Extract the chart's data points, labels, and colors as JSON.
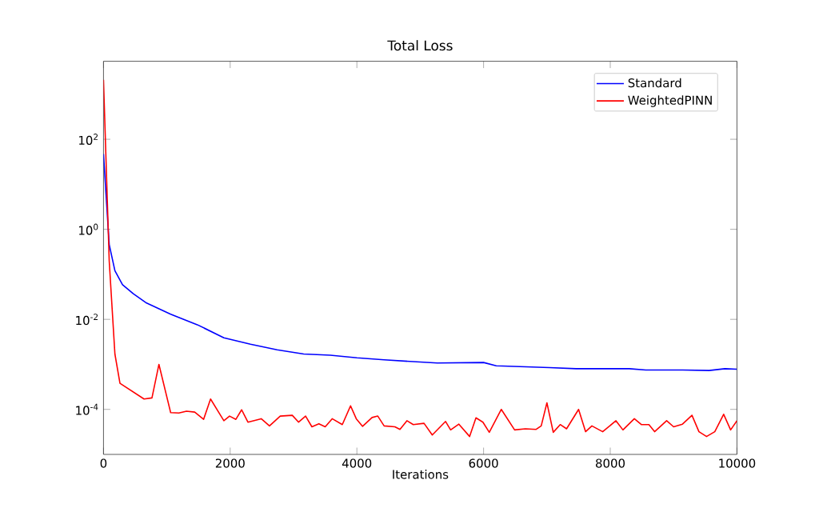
{
  "chart_data": {
    "type": "line",
    "title": "Total Loss",
    "xlabel": "Iterations",
    "xlim": [
      0,
      10000
    ],
    "ylim": [
      1e-05,
      5400
    ],
    "log": "y",
    "legend": "top right",
    "grid": false,
    "xticks": [
      0,
      2000,
      4000,
      6000,
      8000,
      10000
    ],
    "yticks": [
      {
        "value": 0.0001,
        "label": "10$^{-4}$"
      },
      {
        "value": 0.01,
        "label": "10$^{-2}$"
      },
      {
        "value": 1,
        "label": "10$^{0}$"
      },
      {
        "value": 100,
        "label": "10$^{2}$"
      }
    ],
    "series": [
      {
        "name": "Standard",
        "color": "#0000ff",
        "x": [
          0,
          90,
          180,
          300,
          470,
          680,
          1060,
          1480,
          1900,
          2320,
          2740,
          3160,
          3580,
          4000,
          4430,
          5270,
          6000,
          6200,
          7040,
          7460,
          8300,
          8560,
          9140,
          9560,
          9810,
          10000
        ],
        "values": [
          47,
          0.46,
          0.12,
          0.059,
          0.037,
          0.023,
          0.013,
          0.0076,
          0.0039,
          0.0028,
          0.0021,
          0.0017,
          0.0016,
          0.0014,
          0.00126,
          0.00107,
          0.0011,
          0.00093,
          0.00085,
          0.0008,
          0.0008,
          0.00075,
          0.00075,
          0.00073,
          0.0008,
          0.00078
        ]
      },
      {
        "name": "WeightedPINN",
        "color": "#ff0000",
        "x": [
          0,
          90,
          180,
          260,
          640,
          765,
          875,
          1060,
          1190,
          1310,
          1440,
          1580,
          1690,
          1900,
          1990,
          2090,
          2180,
          2280,
          2490,
          2620,
          2790,
          2980,
          3080,
          3190,
          3290,
          3400,
          3500,
          3610,
          3770,
          3900,
          3990,
          4090,
          4240,
          4330,
          4430,
          4600,
          4680,
          4790,
          4890,
          5060,
          5190,
          5400,
          5480,
          5610,
          5780,
          5880,
          5990,
          6090,
          6280,
          6490,
          6660,
          6830,
          6910,
          7000,
          7100,
          7210,
          7310,
          7500,
          7610,
          7710,
          7880,
          8090,
          8200,
          8380,
          8490,
          8610,
          8700,
          8890,
          9000,
          9140,
          9290,
          9400,
          9520,
          9650,
          9790,
          9900,
          10000
        ],
        "values": [
          2100,
          0.2,
          0.0017,
          0.00038,
          0.00017,
          0.00018,
          0.001,
          8.5e-05,
          8.3e-05,
          9.1e-05,
          8.7e-05,
          6e-05,
          0.00017,
          5.6e-05,
          7.1e-05,
          6e-05,
          9.8e-05,
          5.2e-05,
          6.2e-05,
          4.3e-05,
          7.1e-05,
          7.4e-05,
          5.2e-05,
          7.1e-05,
          4.1e-05,
          4.8e-05,
          4.1e-05,
          6.2e-05,
          4.6e-05,
          0.00012,
          6.2e-05,
          4.2e-05,
          6.6e-05,
          7.1e-05,
          4.3e-05,
          4.1e-05,
          3.6e-05,
          5.6e-05,
          4.6e-05,
          4.9e-05,
          2.7e-05,
          5.4e-05,
          3.5e-05,
          4.7e-05,
          2.5e-05,
          6.5e-05,
          5.2e-05,
          3.1e-05,
          0.0001,
          3.5e-05,
          3.7e-05,
          3.6e-05,
          4.3e-05,
          0.00014,
          3.1e-05,
          4.6e-05,
          3.7e-05,
          0.0001,
          3.2e-05,
          4.3e-05,
          3.2e-05,
          5.6e-05,
          3.5e-05,
          6.2e-05,
          4.6e-05,
          4.6e-05,
          3.2e-05,
          5.6e-05,
          4.1e-05,
          4.7e-05,
          7.4e-05,
          3.2e-05,
          2.5e-05,
          3.2e-05,
          7.8e-05,
          3.5e-05,
          5.6e-05
        ]
      }
    ]
  }
}
